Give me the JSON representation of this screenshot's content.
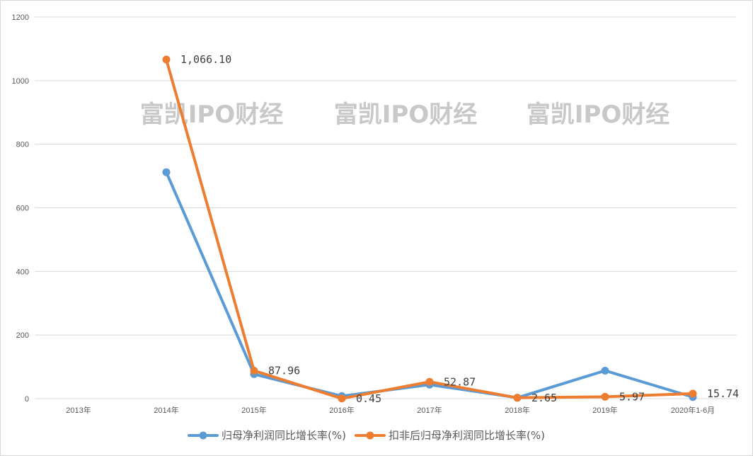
{
  "chart_data": {
    "type": "line",
    "categories": [
      "2013年",
      "2014年",
      "2015年",
      "2016年",
      "2017年",
      "2018年",
      "2019年",
      "2020年1-6月"
    ],
    "ylim": [
      0,
      1200
    ],
    "yticks": [
      0,
      200,
      400,
      600,
      800,
      1000,
      1200
    ],
    "grid": true,
    "legend_position": "bottom",
    "series": [
      {
        "name": "归母净利润同比增长率(%)",
        "color": "#5b9bd5",
        "values": [
          null,
          712,
          77,
          8,
          44,
          3,
          88,
          5
        ],
        "labels": [
          null,
          null,
          null,
          null,
          null,
          null,
          null,
          null
        ]
      },
      {
        "name": "扣非后归母净利润同比增长率(%)",
        "color": "#ed7d31",
        "values": [
          null,
          1066.1,
          87.96,
          0.45,
          52.87,
          2.65,
          5.97,
          15.74
        ],
        "labels": [
          null,
          "1,066.10",
          "87.96",
          "0.45",
          "52.87",
          "2.65",
          "5.97",
          "15.74"
        ]
      }
    ],
    "watermarks": [
      "富凯IPO财经",
      "富凯IPO财经",
      "富凯IPO财经"
    ]
  }
}
